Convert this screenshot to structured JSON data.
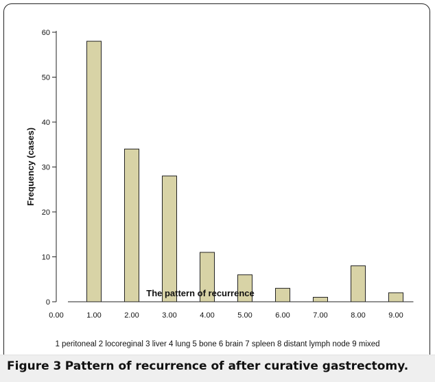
{
  "chart_data": {
    "type": "bar",
    "x": [
      1.0,
      2.0,
      3.0,
      4.0,
      5.0,
      6.0,
      7.0,
      8.0,
      9.0
    ],
    "values": [
      58,
      34,
      28,
      11,
      6,
      3,
      1,
      8,
      2
    ],
    "xticks": [
      "0.00",
      "1.00",
      "2.00",
      "3.00",
      "4.00",
      "5.00",
      "6.00",
      "7.00",
      "8.00",
      "9.00"
    ],
    "yticks": [
      "0",
      "10",
      "20",
      "30",
      "40",
      "50",
      "60"
    ],
    "xlim": [
      0,
      9.5
    ],
    "ylim": [
      0,
      60
    ],
    "xlabel": "The pattern of recurrence",
    "ylabel": "Frequency (cases)",
    "bar_color": "#d8d3a6",
    "grid": false
  },
  "legend_note": "1 peritoneal   2 locoreginal  3 liver  4 lung  5 bone  6 brain  7 spleen  8 distant lymph node  9 mixed",
  "caption": {
    "label": "Figure 3",
    "text": "Pattern of recurrence of after curative gastrectomy."
  }
}
